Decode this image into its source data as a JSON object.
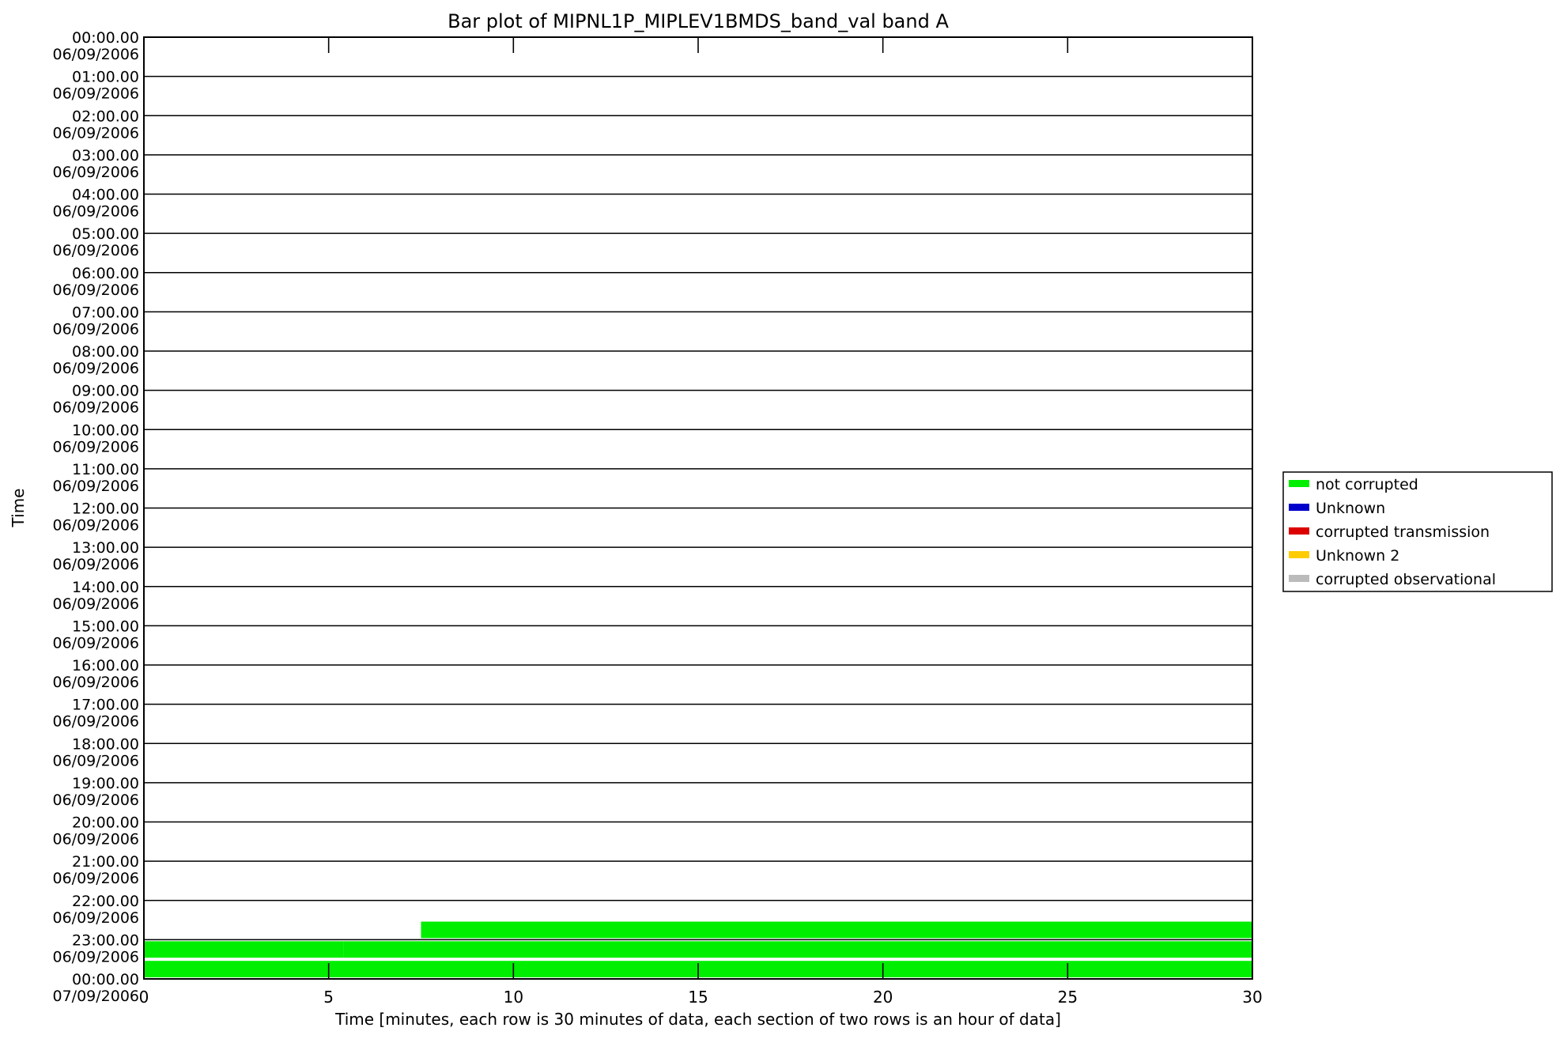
{
  "chart_data": {
    "type": "bar",
    "title": "Bar plot of MIPNL1P_MIPLEV1BMDS_band_val band A",
    "xlabel": "Time [minutes, each row is 30 minutes of data, each section of two rows is an hour of data]",
    "ylabel": "Time",
    "xlim": [
      0,
      30
    ],
    "x_ticks": [
      "0",
      "5",
      "10",
      "15",
      "20",
      "25",
      "30"
    ],
    "y_tick_labels": [
      [
        "00:00.00",
        "06/09/2006"
      ],
      [
        "01:00.00",
        "06/09/2006"
      ],
      [
        "02:00.00",
        "06/09/2006"
      ],
      [
        "03:00.00",
        "06/09/2006"
      ],
      [
        "04:00.00",
        "06/09/2006"
      ],
      [
        "05:00.00",
        "06/09/2006"
      ],
      [
        "06:00.00",
        "06/09/2006"
      ],
      [
        "07:00.00",
        "06/09/2006"
      ],
      [
        "08:00.00",
        "06/09/2006"
      ],
      [
        "09:00.00",
        "06/09/2006"
      ],
      [
        "10:00.00",
        "06/09/2006"
      ],
      [
        "11:00.00",
        "06/09/2006"
      ],
      [
        "12:00.00",
        "06/09/2006"
      ],
      [
        "13:00.00",
        "06/09/2006"
      ],
      [
        "14:00.00",
        "06/09/2006"
      ],
      [
        "15:00.00",
        "06/09/2006"
      ],
      [
        "16:00.00",
        "06/09/2006"
      ],
      [
        "17:00.00",
        "06/09/2006"
      ],
      [
        "18:00.00",
        "06/09/2006"
      ],
      [
        "19:00.00",
        "06/09/2006"
      ],
      [
        "20:00.00",
        "06/09/2006"
      ],
      [
        "21:00.00",
        "06/09/2006"
      ],
      [
        "22:00.00",
        "06/09/2006"
      ],
      [
        "23:00.00",
        "06/09/2006"
      ],
      [
        "00:00.00",
        "07/09/2006"
      ]
    ],
    "legend_position": "right",
    "legend": [
      {
        "name": "not corrupted",
        "color": "#00ee00"
      },
      {
        "name": "Unknown",
        "color": "#0000cc"
      },
      {
        "name": "corrupted transmission",
        "color": "#dd0000"
      },
      {
        "name": "Unknown 2",
        "color": "#ffcc00"
      },
      {
        "name": "corrupted observational",
        "color": "#bbbbbb"
      }
    ],
    "bars": [
      {
        "hour": 22,
        "half": 2,
        "start_min": 7.5,
        "end_min": 30,
        "status": "not corrupted"
      },
      {
        "hour": 23,
        "half": 1,
        "start_min": 0,
        "end_min": 5.4,
        "status": "not corrupted"
      },
      {
        "hour": 23,
        "half": 1,
        "start_min": 5.4,
        "end_min": 30,
        "status": "not corrupted"
      },
      {
        "hour": 23,
        "half": 2,
        "start_min": 0,
        "end_min": 30,
        "status": "not corrupted"
      }
    ]
  }
}
